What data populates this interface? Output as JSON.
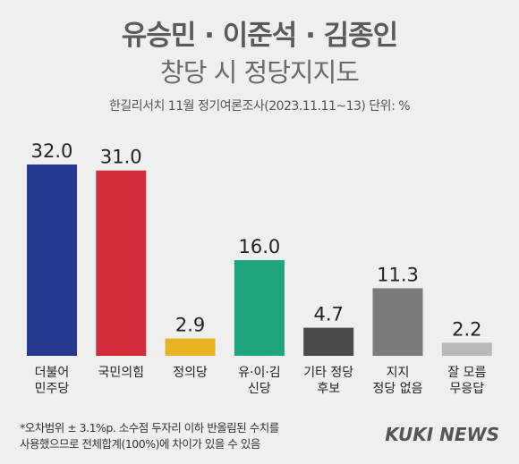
{
  "title": "유승민 · 이준석 · 김종인",
  "subtitle": "창당 시 정당지지도",
  "source": "한길리서치 11월 정기여론조사(2023.11.11~13) 단위: %",
  "chart_data": {
    "type": "bar",
    "categories": [
      [
        "더불어",
        "민주당"
      ],
      [
        "국민의힘"
      ],
      [
        "정의당"
      ],
      [
        "유·이·김",
        "신당"
      ],
      [
        "기타 정당",
        "후보"
      ],
      [
        "지지",
        "정당 없음"
      ],
      [
        "잘 모름",
        "무응답"
      ]
    ],
    "values": [
      32.0,
      31.0,
      2.9,
      16.0,
      4.7,
      11.3,
      2.2
    ],
    "value_labels": [
      "32.0",
      "31.0",
      "2.9",
      "16.0",
      "4.7",
      "11.3",
      "2.2"
    ],
    "colors": [
      "#243a8e",
      "#d12d3a",
      "#e8b225",
      "#1fa57d",
      "#4a4a4a",
      "#7b7b7b",
      "#b9b9b9"
    ],
    "ylim": [
      0,
      32.0
    ],
    "grid": false,
    "legend": "none"
  },
  "footnote": {
    "line1": "*오차범위 ± 3.1%p. 소수점 두자리 이하 반올림된 수치를",
    "line2": "사용했으므로 전체합계(100%)에 차이가 있을 수 있음"
  },
  "logo": "KUKI NEWS"
}
